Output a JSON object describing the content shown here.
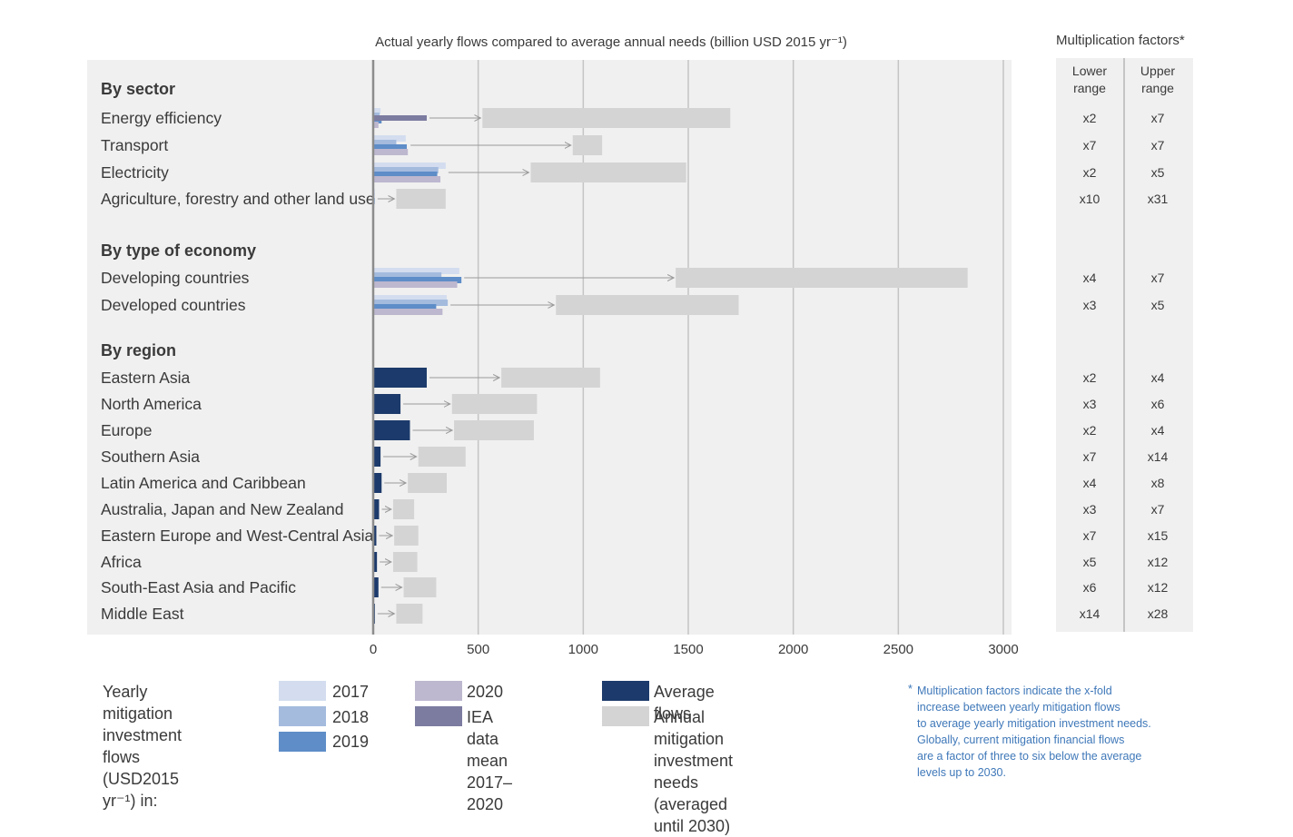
{
  "chart_data": {
    "type": "bar",
    "title": "Actual yearly flows compared to average annual needs (billion USD 2015 yr⁻¹)",
    "xlim": [
      0,
      3000
    ],
    "x_ticks": [
      "0",
      "500",
      "1000",
      "1500",
      "2000",
      "2500",
      "3000"
    ],
    "x_tick_values": [
      0,
      500,
      1000,
      1500,
      2000,
      2500,
      3000
    ],
    "grid": true,
    "colors": {
      "y2017": "#d3ddef",
      "y2018": "#a4bbde",
      "y2019": "#5e8dc8",
      "y2020": "#bdb7cf",
      "iea": "#7c7ba0",
      "average": "#1c3a6b",
      "needs": "#d4d4d4",
      "arrow": "#9a9a9a",
      "axis": "#8c8c8c",
      "grid": "#c4c4c4",
      "panel": "#f0f0f0"
    },
    "groups": [
      {
        "heading": "By sector",
        "rows": [
          {
            "label": "Energy efficiency",
            "mode": "years",
            "y2017": 35,
            "y2018": 30,
            "y2019": 40,
            "y2020": 25,
            "iea": 255,
            "needs": [
              520,
              1700
            ],
            "lower": "x2",
            "upper": "x7"
          },
          {
            "label": "Transport",
            "mode": "years",
            "y2017": 155,
            "y2018": 110,
            "y2019": 160,
            "y2020": 165,
            "needs": [
              950,
              1090
            ],
            "lower": "x7",
            "upper": "x7"
          },
          {
            "label": "Electricity",
            "mode": "years",
            "y2017": 345,
            "y2018": 310,
            "y2019": 305,
            "y2020": 320,
            "needs": [
              750,
              1490
            ],
            "lower": "x2",
            "upper": "x5"
          },
          {
            "label": "Agriculture, forestry and other land use",
            "mode": "years",
            "y2017": 8,
            "y2018": 6,
            "y2019": 7,
            "y2020": 5,
            "needs": [
              110,
              345
            ],
            "lower": "x10",
            "upper": "x31"
          }
        ]
      },
      {
        "heading": "By type of economy",
        "rows": [
          {
            "label": "Developing countries",
            "mode": "years",
            "y2017": 410,
            "y2018": 325,
            "y2019": 420,
            "y2020": 400,
            "needs": [
              1440,
              2830
            ],
            "lower": "x4",
            "upper": "x7"
          },
          {
            "label": "Developed countries",
            "mode": "years",
            "y2017": 350,
            "y2018": 355,
            "y2019": 300,
            "y2020": 330,
            "needs": [
              870,
              1740
            ],
            "lower": "x3",
            "upper": "x5"
          }
        ]
      },
      {
        "heading": "By region",
        "rows": [
          {
            "label": "Eastern Asia",
            "mode": "avg",
            "avg": 255,
            "needs": [
              610,
              1080
            ],
            "lower": "x2",
            "upper": "x4"
          },
          {
            "label": "North America",
            "mode": "avg",
            "avg": 130,
            "needs": [
              375,
              780
            ],
            "lower": "x3",
            "upper": "x6"
          },
          {
            "label": "Europe",
            "mode": "avg",
            "avg": 175,
            "needs": [
              385,
              765
            ],
            "lower": "x2",
            "upper": "x4"
          },
          {
            "label": "Southern Asia",
            "mode": "avg",
            "avg": 35,
            "needs": [
              215,
              440
            ],
            "lower": "x7",
            "upper": "x14"
          },
          {
            "label": "Latin America and Caribbean",
            "mode": "avg",
            "avg": 40,
            "needs": [
              165,
              350
            ],
            "lower": "x4",
            "upper": "x8"
          },
          {
            "label": "Australia, Japan and New Zealand",
            "mode": "avg",
            "avg": 28,
            "needs": [
              95,
              195
            ],
            "lower": "x3",
            "upper": "x7"
          },
          {
            "label": "Eastern Europe and West-Central Asia",
            "mode": "avg",
            "avg": 15,
            "needs": [
              100,
              215
            ],
            "lower": "x7",
            "upper": "x15"
          },
          {
            "label": "Africa",
            "mode": "avg",
            "avg": 18,
            "needs": [
              95,
              210
            ],
            "lower": "x5",
            "upper": "x12"
          },
          {
            "label": "South-East Asia and Pacific",
            "mode": "avg",
            "avg": 25,
            "needs": [
              145,
              300
            ],
            "lower": "x6",
            "upper": "x12"
          },
          {
            "label": "Middle East",
            "mode": "avg",
            "avg": 8,
            "needs": [
              110,
              235
            ],
            "lower": "x14",
            "upper": "x28"
          }
        ]
      }
    ]
  },
  "multiplication": {
    "title": "Multiplication factors*",
    "lower_header": [
      "Lower",
      "range"
    ],
    "upper_header": [
      "Upper",
      "range"
    ]
  },
  "legend": {
    "intro": [
      "Yearly mitigation",
      "investment flows",
      "(USD2015 yr⁻¹) in:"
    ],
    "y2017": "2017",
    "y2018": "2018",
    "y2019": "2019",
    "y2020": "2020",
    "iea": [
      "IEA data mean",
      "2017–2020"
    ],
    "average": "Average flows",
    "needs": [
      "Annual mitigation investment",
      "needs (averaged until 2030)"
    ]
  },
  "note": {
    "star": "*",
    "lines": [
      "Multiplication factors indicate the x-fold",
      "increase between yearly mitigation flows",
      "to average yearly mitigation investment needs.",
      "Globally, current mitigation financial flows",
      "are a factor of three to six below the average",
      "levels up to 2030."
    ]
  }
}
